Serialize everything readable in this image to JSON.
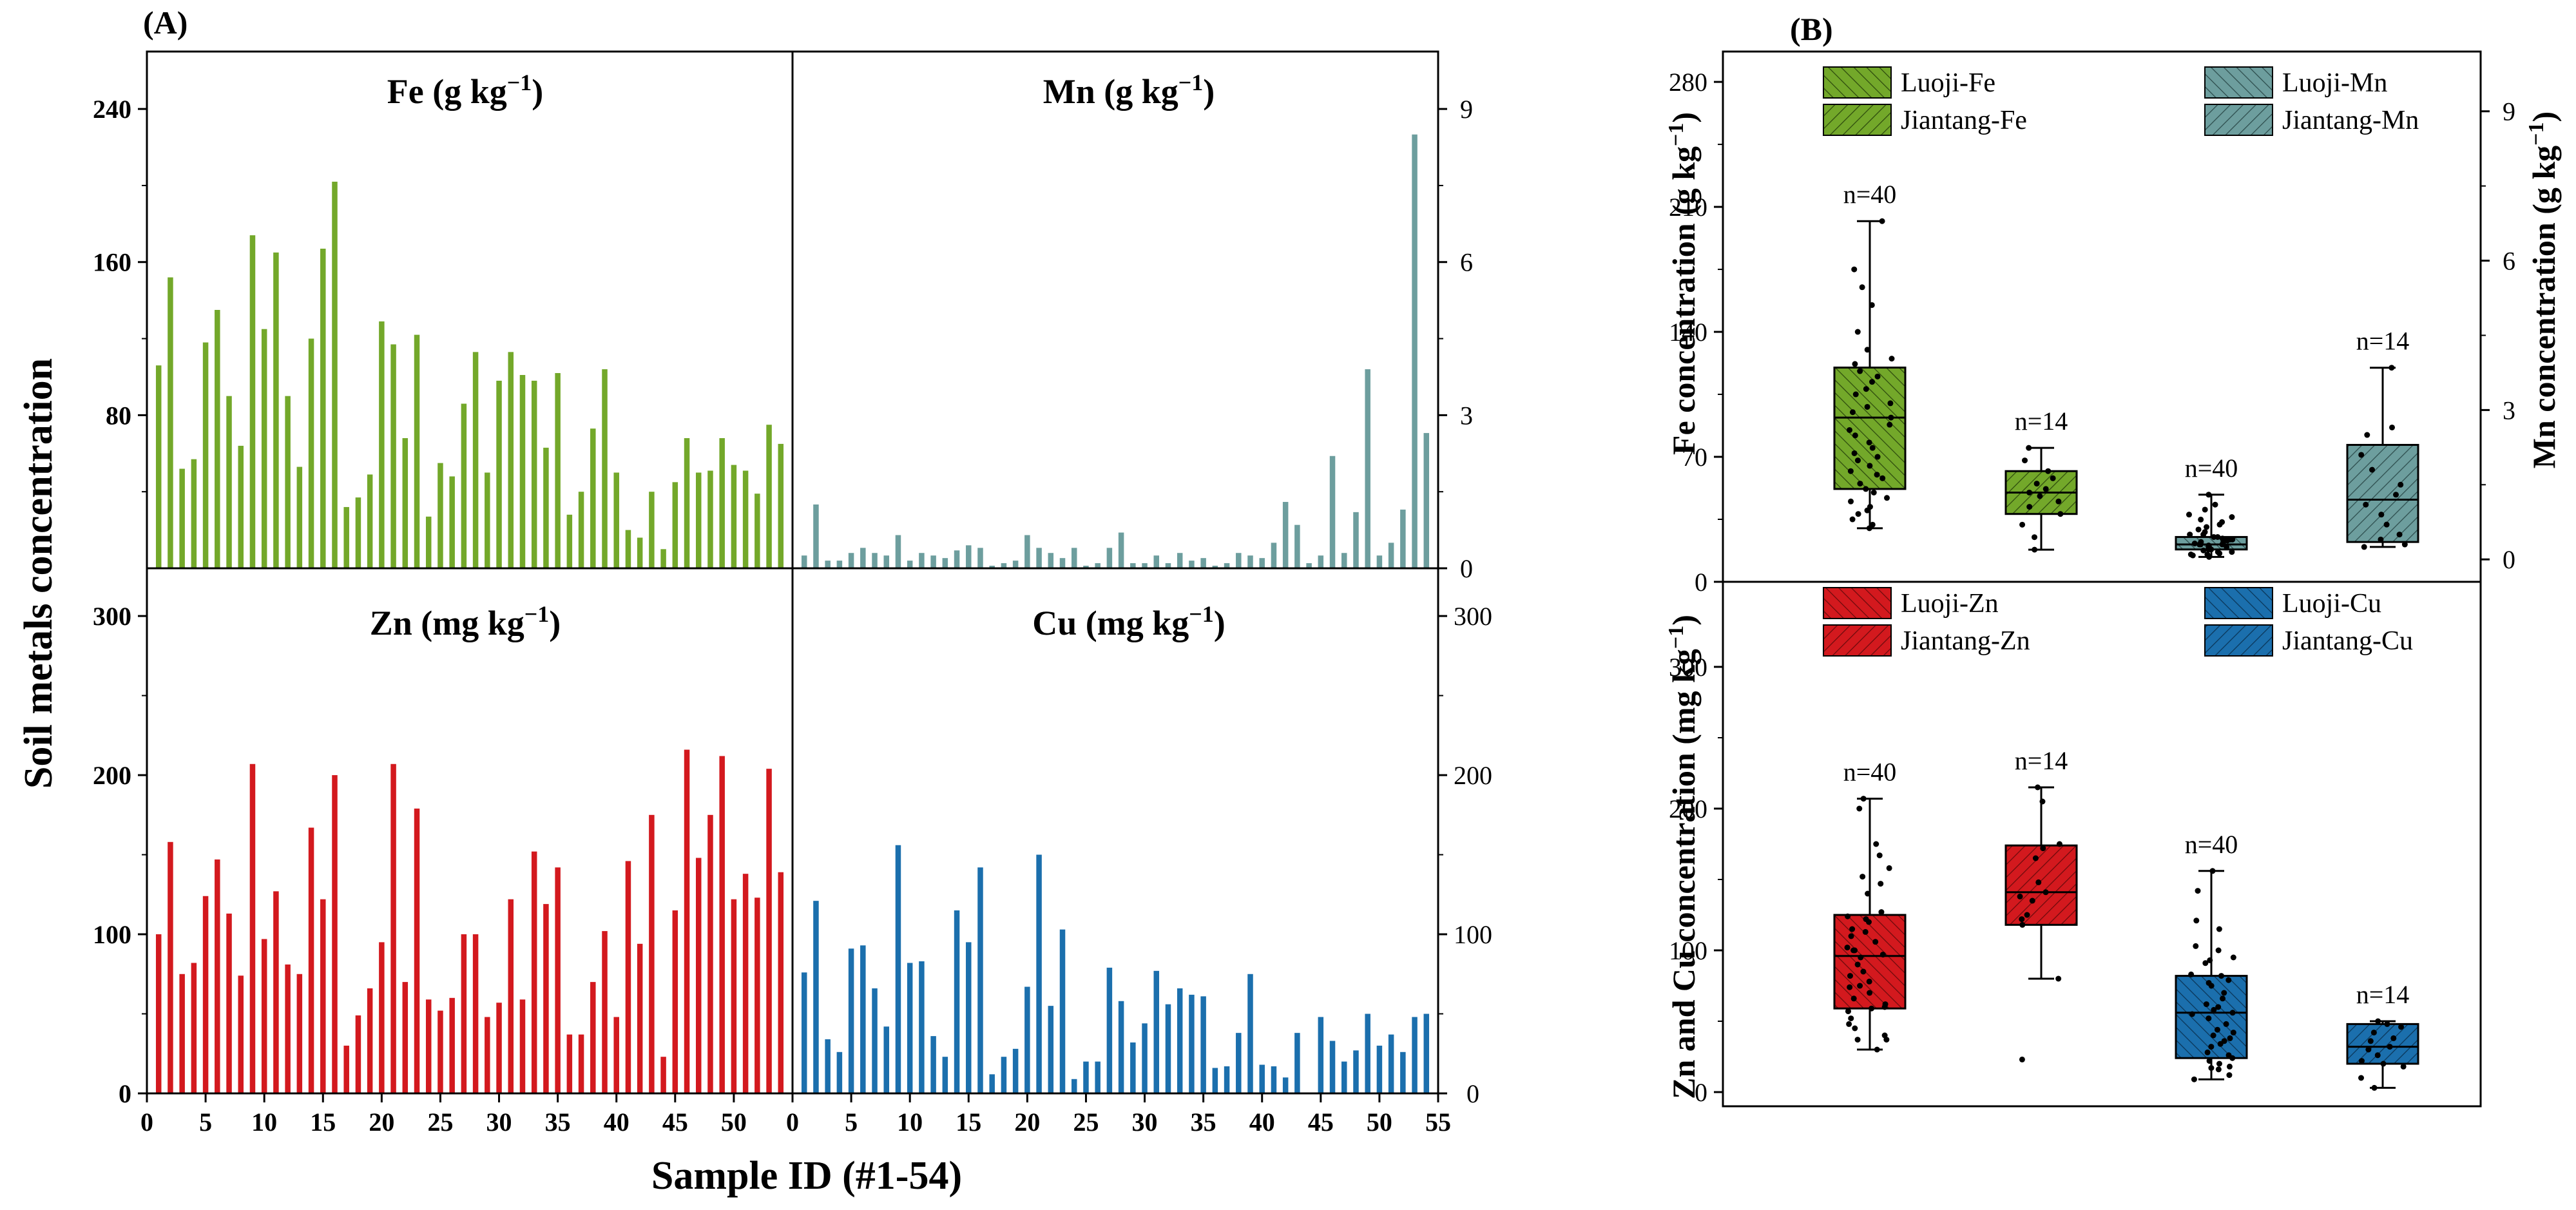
{
  "panel_labels": {
    "a": "(A)",
    "b": "(B)"
  },
  "axis_titles": {
    "a_y": "Soil metals concentration",
    "a_x": "Sample ID (#1-54)",
    "b_top_left": "Fe concentration (g kg",
    "b_top_right": "Mn concentration (g kg",
    "b_bottom_left": "Zn and Cu concentration (mg kg",
    "unit_sup": "−1",
    "close_paren": ")"
  },
  "subplot_titles": {
    "fe": {
      "el": "Fe",
      "unit": "(g kg",
      "sup": "−1",
      "close": ")"
    },
    "mn": {
      "el": "Mn",
      "unit": "(g kg",
      "sup": "−1",
      "close": ")"
    },
    "zn": {
      "el": "Zn",
      "unit": "(mg kg",
      "sup": "−1",
      "close": ")"
    },
    "cu": {
      "el": "Cu",
      "unit": "(mg kg",
      "sup": "−1",
      "close": ")"
    }
  },
  "colors": {
    "fe": "#73a82a",
    "fe_light": "#8fc43a",
    "mn": "#6d9e9e",
    "mn_light": "#86b3b3",
    "zn": "#d3191e",
    "zn_light": "#e02a2f",
    "cu": "#1b6fad",
    "cu_light": "#2f86c4"
  },
  "chart_data": [
    {
      "type": "bar",
      "id": "A-Fe",
      "title": "Fe (g kg−1)",
      "xlabel": "Sample ID (#1-54)",
      "ylabel": "Soil metals concentration",
      "x_ticks": [
        "0",
        "5",
        "10",
        "15",
        "20",
        "25",
        "30",
        "35",
        "40",
        "45",
        "50",
        "55"
      ],
      "x_range": [
        0,
        55
      ],
      "ylim": [
        0,
        270
      ],
      "y_ticks": [
        "80",
        "160",
        "240"
      ],
      "categories": [
        1,
        2,
        3,
        4,
        5,
        6,
        7,
        8,
        9,
        10,
        11,
        12,
        13,
        14,
        15,
        16,
        17,
        18,
        19,
        20,
        21,
        22,
        23,
        24,
        25,
        26,
        27,
        28,
        29,
        30,
        31,
        32,
        33,
        34,
        35,
        36,
        37,
        38,
        39,
        40,
        41,
        42,
        43,
        44,
        45,
        46,
        47,
        48,
        49,
        50,
        51,
        52,
        53,
        54
      ],
      "values": [
        106,
        152,
        52,
        57,
        118,
        135,
        90,
        64,
        174,
        125,
        165,
        90,
        53,
        120,
        167,
        202,
        32,
        37,
        49,
        129,
        117,
        68,
        122,
        27,
        55,
        48,
        86,
        113,
        50,
        98,
        113,
        101,
        98,
        63,
        102,
        28,
        40,
        73,
        104,
        50,
        20,
        16,
        40,
        10,
        45,
        68,
        50,
        51,
        68,
        54,
        51,
        39,
        75,
        65
      ]
    },
    {
      "type": "bar",
      "id": "A-Mn",
      "title": "Mn (g kg−1)",
      "x_range": [
        0,
        55
      ],
      "ylim": [
        0,
        10.125
      ],
      "y_ticks_right": [
        "0",
        "3",
        "6",
        "9"
      ],
      "categories": [
        1,
        2,
        3,
        4,
        5,
        6,
        7,
        8,
        9,
        10,
        11,
        12,
        13,
        14,
        15,
        16,
        17,
        18,
        19,
        20,
        21,
        22,
        23,
        24,
        25,
        26,
        27,
        28,
        29,
        30,
        31,
        32,
        33,
        34,
        35,
        36,
        37,
        38,
        39,
        40,
        41,
        42,
        43,
        44,
        45,
        46,
        47,
        48,
        49,
        50,
        51,
        52,
        53,
        54
      ],
      "values": [
        0.25,
        1.25,
        0.15,
        0.15,
        0.3,
        0.4,
        0.3,
        0.25,
        0.65,
        0.15,
        0.3,
        0.25,
        0.2,
        0.35,
        0.45,
        0.4,
        0.05,
        0.1,
        0.15,
        0.65,
        0.4,
        0.3,
        0.2,
        0.4,
        0.05,
        0.1,
        0.4,
        0.7,
        0.1,
        0.1,
        0.25,
        0.1,
        0.3,
        0.15,
        0.2,
        0.05,
        0.1,
        0.3,
        0.25,
        0.2,
        0.5,
        1.3,
        0.85,
        0.1,
        0.25,
        2.2,
        0.3,
        1.1,
        3.9,
        0.25,
        0.5,
        1.15,
        8.5,
        2.65
      ]
    },
    {
      "type": "bar",
      "id": "A-Zn",
      "title": "Zn (mg kg−1)",
      "x_range": [
        0,
        55
      ],
      "ylim": [
        0,
        330
      ],
      "y_ticks": [
        "0",
        "100",
        "200",
        "300"
      ],
      "categories": [
        1,
        2,
        3,
        4,
        5,
        6,
        7,
        8,
        9,
        10,
        11,
        12,
        13,
        14,
        15,
        16,
        17,
        18,
        19,
        20,
        21,
        22,
        23,
        24,
        25,
        26,
        27,
        28,
        29,
        30,
        31,
        32,
        33,
        34,
        35,
        36,
        37,
        38,
        39,
        40,
        41,
        42,
        43,
        44,
        45,
        46,
        47,
        48,
        49,
        50,
        51,
        52,
        53,
        54
      ],
      "values": [
        100,
        158,
        75,
        82,
        124,
        147,
        113,
        74,
        207,
        97,
        127,
        81,
        75,
        167,
        122,
        200,
        30,
        49,
        66,
        95,
        207,
        70,
        179,
        59,
        52,
        60,
        100,
        100,
        48,
        57,
        122,
        59,
        152,
        119,
        142,
        37,
        37,
        70,
        102,
        48,
        146,
        94,
        175,
        23,
        115,
        216,
        148,
        175,
        212,
        122,
        138,
        123,
        204,
        139
      ]
    },
    {
      "type": "bar",
      "id": "A-Cu",
      "title": "Cu (mg kg−1)",
      "x_range": [
        0,
        55
      ],
      "ylim": [
        0,
        330
      ],
      "y_ticks_right": [
        "0",
        "100",
        "200",
        "300"
      ],
      "categories": [
        1,
        2,
        3,
        4,
        5,
        6,
        7,
        8,
        9,
        10,
        11,
        12,
        13,
        14,
        15,
        16,
        17,
        18,
        19,
        20,
        21,
        22,
        23,
        24,
        25,
        26,
        27,
        28,
        29,
        30,
        31,
        32,
        33,
        34,
        35,
        36,
        37,
        38,
        39,
        40,
        41,
        42,
        43,
        44,
        45,
        46,
        47,
        48,
        49,
        50,
        51,
        52,
        53,
        54
      ],
      "values": [
        76,
        121,
        34,
        26,
        91,
        93,
        66,
        42,
        156,
        82,
        83,
        36,
        23,
        115,
        95,
        142,
        12,
        23,
        28,
        67,
        150,
        55,
        103,
        9,
        20,
        20,
        79,
        58,
        32,
        44,
        77,
        56,
        66,
        62,
        61,
        16,
        17,
        38,
        75,
        18,
        17,
        10,
        38,
        0,
        48,
        33,
        20,
        27,
        50,
        30,
        37,
        26,
        48,
        50
      ]
    },
    {
      "type": "box",
      "id": "B-top",
      "ylabel_left": "Fe concentration (g kg−1)",
      "ylabel_right": "Mn concentration (g kg−1)",
      "ylim_left": [
        0,
        297
      ],
      "yticks_left": [
        "0",
        "70",
        "140",
        "210",
        "280"
      ],
      "ylim_right": [
        -0.45,
        10.2
      ],
      "yticks_right": [
        "0",
        "3",
        "6",
        "9"
      ],
      "legend": [
        "Luoji-Fe",
        "Jiantang-Fe",
        "Luoji-Mn",
        "Jiantang-Mn"
      ],
      "groups": [
        {
          "name": "Luoji-Fe",
          "axis": "left",
          "n_label": "n=40",
          "min": 30,
          "q1": 52,
          "median": 92,
          "q3": 120,
          "max": 202,
          "points": [
            30,
            32,
            35,
            38,
            40,
            42,
            45,
            47,
            50,
            52,
            55,
            58,
            60,
            62,
            65,
            68,
            70,
            72,
            75,
            78,
            82,
            85,
            88,
            92,
            95,
            98,
            100,
            105,
            108,
            112,
            115,
            118,
            122,
            125,
            130,
            140,
            155,
            165,
            175,
            202
          ]
        },
        {
          "name": "Jiantang-Fe",
          "axis": "left",
          "n_label": "n=14",
          "min": 18,
          "q1": 38,
          "median": 50,
          "q3": 62,
          "max": 75,
          "points": [
            18,
            25,
            32,
            38,
            42,
            45,
            48,
            50,
            52,
            55,
            58,
            62,
            68,
            75
          ]
        },
        {
          "name": "Luoji-Mn",
          "axis": "right",
          "n_label": "n=40",
          "min": 0.05,
          "q1": 0.2,
          "median": 0.3,
          "q3": 0.45,
          "max": 1.3,
          "points": [
            0.05,
            0.08,
            0.1,
            0.1,
            0.12,
            0.15,
            0.15,
            0.18,
            0.2,
            0.2,
            0.22,
            0.25,
            0.25,
            0.28,
            0.3,
            0.3,
            0.3,
            0.32,
            0.35,
            0.35,
            0.38,
            0.4,
            0.4,
            0.4,
            0.42,
            0.45,
            0.45,
            0.5,
            0.5,
            0.55,
            0.6,
            0.65,
            0.7,
            0.75,
            0.8,
            0.85,
            0.9,
            1.0,
            1.1,
            1.3
          ]
        },
        {
          "name": "Jiantang-Mn",
          "axis": "right",
          "n_label": "n=14",
          "min": 0.25,
          "q1": 0.35,
          "median": 1.2,
          "q3": 2.3,
          "max": 3.85,
          "points": [
            0.25,
            0.3,
            0.4,
            0.5,
            0.7,
            0.9,
            1.1,
            1.3,
            1.5,
            1.8,
            2.1,
            2.5,
            2.65,
            3.85
          ]
        }
      ]
    },
    {
      "type": "box",
      "id": "B-bottom",
      "ylabel_left": "Zn and Cu concentration (mg kg−1)",
      "ylim_left": [
        -10,
        360
      ],
      "yticks_left": [
        "0",
        "100",
        "200",
        "300"
      ],
      "legend": [
        "Luoji-Zn",
        "Jiantang-Zn",
        "Luoji-Cu",
        "Jiantang-Cu"
      ],
      "groups": [
        {
          "name": "Luoji-Zn",
          "n_label": "n=40",
          "min": 30,
          "q1": 59,
          "median": 96,
          "q3": 125,
          "max": 207,
          "points": [
            30,
            37,
            37,
            40,
            45,
            48,
            52,
            57,
            59,
            60,
            62,
            66,
            70,
            74,
            75,
            78,
            82,
            85,
            90,
            95,
            97,
            100,
            100,
            102,
            106,
            110,
            113,
            115,
            120,
            122,
            124,
            127,
            140,
            147,
            152,
            158,
            167,
            175,
            200,
            207
          ]
        },
        {
          "name": "Jiantang-Zn",
          "n_label": "n=14",
          "min": 80,
          "q1": 118,
          "median": 141,
          "q3": 174,
          "max": 215,
          "points": [
            23,
            80,
            118,
            122,
            125,
            135,
            138,
            141,
            148,
            165,
            172,
            175,
            205,
            215
          ]
        },
        {
          "name": "Luoji-Cu",
          "n_label": "n=40",
          "min": 9,
          "q1": 24,
          "median": 56,
          "q3": 82,
          "max": 156,
          "points": [
            9,
            12,
            16,
            17,
            18,
            20,
            22,
            24,
            26,
            28,
            32,
            34,
            36,
            38,
            40,
            42,
            44,
            48,
            52,
            55,
            56,
            58,
            60,
            62,
            66,
            70,
            75,
            77,
            79,
            82,
            83,
            91,
            93,
            95,
            100,
            103,
            115,
            121,
            142,
            156
          ]
        },
        {
          "name": "Jiantang-Cu",
          "n_label": "n=14",
          "min": 3,
          "q1": 20,
          "median": 32,
          "q3": 48,
          "max": 50,
          "points": [
            3,
            10,
            18,
            20,
            22,
            26,
            30,
            32,
            36,
            38,
            42,
            46,
            48,
            50
          ]
        }
      ]
    }
  ]
}
